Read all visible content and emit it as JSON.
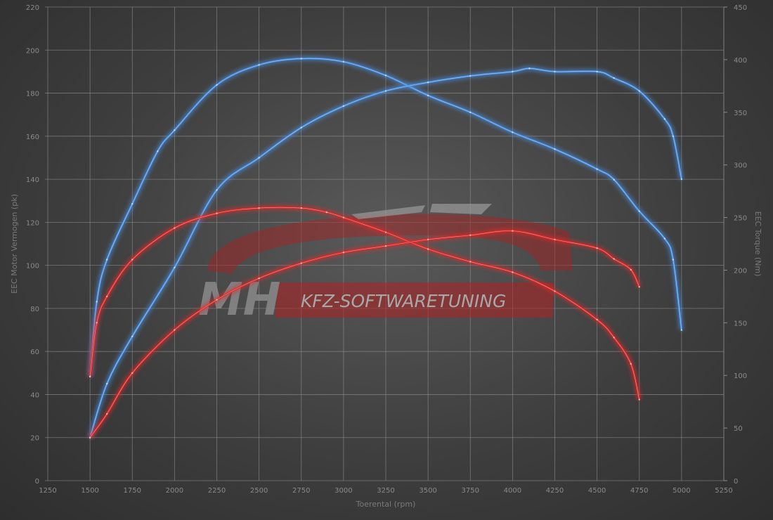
{
  "chart_data": {
    "type": "line",
    "xlabel": "Toerental (rpm)",
    "ylabel_left": "EEC Motor Vermogen (pk)",
    "ylabel_right": "EEC Torque (Nm)",
    "xlim": [
      1250,
      5250
    ],
    "ylim_left": [
      0,
      220
    ],
    "ylim_right": [
      0,
      450
    ],
    "x_ticks": [
      "1250",
      "1500",
      "1750",
      "2000",
      "2250",
      "2500",
      "2750",
      "3000",
      "3250",
      "3500",
      "3750",
      "4000",
      "4250",
      "4500",
      "4750",
      "5000",
      "5250"
    ],
    "y_left_ticks": [
      "0",
      "20",
      "40",
      "60",
      "80",
      "100",
      "120",
      "140",
      "160",
      "180",
      "200",
      "220"
    ],
    "y_right_ticks": [
      "0",
      "50",
      "100",
      "150",
      "200",
      "250",
      "300",
      "350",
      "400",
      "450"
    ],
    "grid": true,
    "series": [
      {
        "axis": "right",
        "color": "#4a8fe0",
        "points": [
          [
            1500,
            99
          ],
          [
            1540,
            170
          ],
          [
            1600,
            210
          ],
          [
            1750,
            263
          ],
          [
            1900,
            313
          ],
          [
            2000,
            333
          ],
          [
            2250,
            376
          ],
          [
            2500,
            395
          ],
          [
            2750,
            401
          ],
          [
            3000,
            398
          ],
          [
            3250,
            385
          ],
          [
            3500,
            366
          ],
          [
            3750,
            350
          ],
          [
            4000,
            331
          ],
          [
            4250,
            315
          ],
          [
            4500,
            296
          ],
          [
            4600,
            286
          ],
          [
            4750,
            256
          ],
          [
            4900,
            230
          ],
          [
            4950,
            210
          ],
          [
            5000,
            143
          ]
        ]
      },
      {
        "axis": "left",
        "color": "#4a8fe0",
        "points": [
          [
            1500,
            20
          ],
          [
            1600,
            45
          ],
          [
            1750,
            67
          ],
          [
            2000,
            99
          ],
          [
            2250,
            135
          ],
          [
            2500,
            150
          ],
          [
            2750,
            164
          ],
          [
            3000,
            174
          ],
          [
            3250,
            181
          ],
          [
            3500,
            185
          ],
          [
            3750,
            188
          ],
          [
            4000,
            190
          ],
          [
            4100,
            191.5
          ],
          [
            4250,
            190
          ],
          [
            4500,
            190
          ],
          [
            4600,
            187
          ],
          [
            4750,
            181
          ],
          [
            4900,
            168
          ],
          [
            4950,
            160
          ],
          [
            5000,
            140
          ]
        ]
      },
      {
        "axis": "right",
        "color": "#e02a2a",
        "points": [
          [
            1500,
            99
          ],
          [
            1540,
            150
          ],
          [
            1600,
            175
          ],
          [
            1750,
            210
          ],
          [
            2000,
            240
          ],
          [
            2250,
            254
          ],
          [
            2500,
            259
          ],
          [
            2750,
            259
          ],
          [
            2900,
            255
          ],
          [
            3000,
            250
          ],
          [
            3250,
            236
          ],
          [
            3500,
            220
          ],
          [
            3750,
            208
          ],
          [
            4000,
            198
          ],
          [
            4250,
            180
          ],
          [
            4500,
            153
          ],
          [
            4600,
            136
          ],
          [
            4700,
            111
          ],
          [
            4750,
            77
          ]
        ]
      },
      {
        "axis": "left",
        "color": "#e02a2a",
        "points": [
          [
            1500,
            20
          ],
          [
            1600,
            31
          ],
          [
            1750,
            50
          ],
          [
            2000,
            70
          ],
          [
            2250,
            84
          ],
          [
            2500,
            94
          ],
          [
            2750,
            101
          ],
          [
            3000,
            106
          ],
          [
            3250,
            109
          ],
          [
            3500,
            112
          ],
          [
            3750,
            114
          ],
          [
            4000,
            116
          ],
          [
            4250,
            112
          ],
          [
            4500,
            108
          ],
          [
            4600,
            103
          ],
          [
            4700,
            98
          ],
          [
            4750,
            90
          ]
        ]
      }
    ]
  },
  "watermark": {
    "mh": "MH",
    "text": "KFZ-SOFTWARETUNING"
  }
}
